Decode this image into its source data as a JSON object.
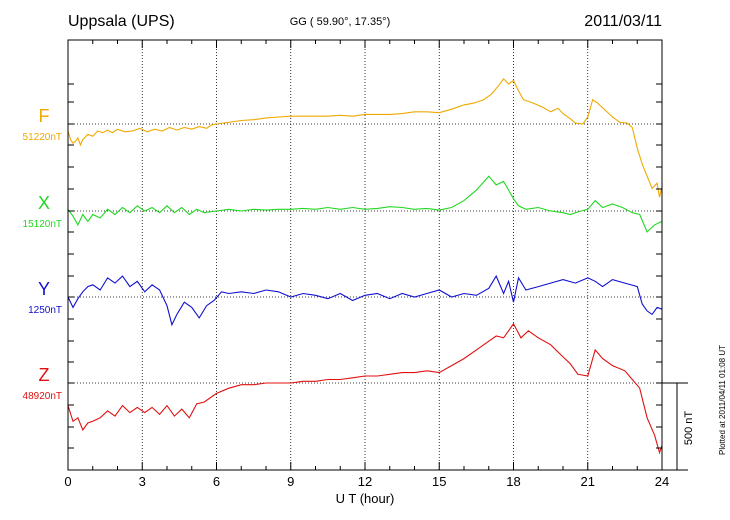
{
  "header": {
    "station": "Uppsala (UPS)",
    "coords": "GG ( 59.90°,  17.35°)",
    "date": "2011/03/11"
  },
  "side_note": "Plotted at 2011/04/11 01:08 UT",
  "scale_bar_label": "500 nT",
  "colors": {
    "F": "#f0a800",
    "X": "#22d822",
    "Y": "#1010d0",
    "Z": "#e01010",
    "axis": "#000000"
  },
  "chart_data": {
    "type": "line",
    "title": "Uppsala (UPS)",
    "xlabel": "U T (hour)",
    "ylabel": "",
    "xlim": [
      0,
      24
    ],
    "xticks": [
      0,
      3,
      6,
      9,
      12,
      15,
      18,
      21,
      24
    ],
    "xtick_labels": [
      "0",
      "3",
      "6",
      "9",
      "12",
      "15",
      "18",
      "21",
      "24"
    ],
    "y_units": "nT",
    "scale_bar_nT": 500,
    "grid": true,
    "series": [
      {
        "name": "F",
        "baseline_label": "51220nT",
        "baseline_nT": 51220,
        "x": [
          0,
          0.1,
          0.2,
          0.3,
          0.4,
          0.5,
          0.6,
          0.8,
          1.0,
          1.2,
          1.4,
          1.6,
          1.8,
          2.0,
          2.3,
          2.6,
          2.9,
          3.2,
          3.5,
          3.8,
          4.1,
          4.4,
          4.7,
          5.0,
          5.3,
          5.6,
          5.8,
          6.0,
          6.5,
          7.0,
          7.5,
          8.0,
          8.5,
          9.0,
          9.5,
          10.0,
          10.5,
          11.0,
          11.5,
          12.0,
          12.5,
          13.0,
          13.5,
          14.0,
          14.5,
          15.0,
          15.5,
          16.0,
          16.4,
          16.8,
          17.1,
          17.4,
          17.6,
          17.8,
          18.0,
          18.2,
          18.4,
          18.8,
          19.2,
          19.5,
          19.8,
          20.0,
          20.3,
          20.5,
          20.8,
          21.0,
          21.2,
          21.4,
          21.7,
          22.0,
          22.3,
          22.6,
          22.8,
          23.0,
          23.2,
          23.4,
          23.6,
          23.8,
          23.9,
          24.0
        ],
        "y": [
          -40,
          -90,
          -110,
          -100,
          -80,
          -120,
          -90,
          -60,
          -70,
          -40,
          -50,
          -35,
          -50,
          -30,
          -45,
          -40,
          -25,
          -45,
          -30,
          -40,
          -20,
          -35,
          -20,
          -30,
          -15,
          -25,
          -5,
          0,
          10,
          20,
          25,
          35,
          40,
          45,
          45,
          45,
          45,
          50,
          45,
          55,
          55,
          55,
          60,
          70,
          70,
          65,
          85,
          110,
          120,
          140,
          170,
          220,
          260,
          230,
          250,
          190,
          140,
          120,
          95,
          70,
          90,
          60,
          30,
          5,
          0,
          40,
          140,
          120,
          80,
          40,
          10,
          5,
          -20,
          -140,
          -230,
          -300,
          -370,
          -340,
          -420,
          -360
        ]
      },
      {
        "name": "X",
        "baseline_label": "15120nT",
        "baseline_nT": 15120,
        "x": [
          0,
          0.2,
          0.4,
          0.6,
          0.8,
          1.0,
          1.3,
          1.6,
          1.9,
          2.2,
          2.5,
          2.8,
          3.1,
          3.4,
          3.7,
          4.0,
          4.3,
          4.6,
          4.9,
          5.2,
          5.5,
          6.0,
          6.5,
          7.0,
          7.5,
          8.0,
          8.5,
          9.0,
          9.5,
          10.0,
          10.5,
          11.0,
          11.5,
          12.0,
          12.5,
          13.0,
          13.5,
          14.0,
          14.5,
          15.0,
          15.5,
          16.0,
          16.5,
          17.0,
          17.3,
          17.6,
          17.8,
          18.0,
          18.2,
          18.5,
          19.0,
          19.5,
          20.0,
          20.3,
          20.6,
          21.0,
          21.3,
          21.6,
          22.0,
          22.4,
          22.8,
          23.1,
          23.4,
          23.7,
          24.0
        ],
        "y": [
          10,
          -30,
          -80,
          -20,
          -60,
          -20,
          -40,
          10,
          -20,
          20,
          -10,
          30,
          0,
          20,
          -10,
          30,
          -10,
          20,
          -20,
          10,
          -10,
          0,
          10,
          0,
          10,
          5,
          10,
          10,
          15,
          10,
          20,
          10,
          20,
          10,
          15,
          25,
          20,
          10,
          15,
          5,
          20,
          60,
          120,
          200,
          150,
          170,
          120,
          70,
          30,
          10,
          20,
          0,
          -10,
          -20,
          -5,
          10,
          60,
          20,
          40,
          20,
          -10,
          -20,
          -120,
          -80,
          -60
        ]
      },
      {
        "name": "Y",
        "baseline_label": "1250nT",
        "baseline_nT": 1250,
        "x": [
          0,
          0.2,
          0.4,
          0.6,
          0.8,
          1.0,
          1.3,
          1.6,
          1.9,
          2.2,
          2.5,
          2.8,
          3.1,
          3.4,
          3.7,
          4.0,
          4.2,
          4.4,
          4.7,
          5.0,
          5.3,
          5.6,
          5.9,
          6.2,
          6.5,
          7.0,
          7.5,
          8.0,
          8.5,
          9.0,
          9.5,
          10.0,
          10.5,
          11.0,
          11.5,
          12.0,
          12.5,
          13.0,
          13.5,
          14.0,
          14.5,
          15.0,
          15.5,
          16.0,
          16.5,
          17.0,
          17.3,
          17.6,
          17.8,
          18.0,
          18.2,
          18.5,
          19.0,
          19.5,
          20.0,
          20.5,
          21.0,
          21.3,
          21.6,
          22.0,
          22.5,
          23.0,
          23.2,
          23.4,
          23.6,
          23.8,
          24.0
        ],
        "y": [
          0,
          -60,
          -10,
          30,
          60,
          70,
          40,
          110,
          80,
          120,
          60,
          90,
          30,
          70,
          40,
          -50,
          -160,
          -100,
          -30,
          -60,
          -120,
          -50,
          -20,
          30,
          20,
          30,
          20,
          40,
          30,
          0,
          20,
          10,
          -10,
          20,
          -20,
          10,
          20,
          -10,
          20,
          0,
          20,
          40,
          0,
          20,
          10,
          50,
          120,
          20,
          90,
          -30,
          110,
          40,
          60,
          80,
          100,
          80,
          110,
          90,
          60,
          100,
          80,
          60,
          -40,
          -80,
          -100,
          -60,
          -70
        ]
      },
      {
        "name": "Z",
        "baseline_label": "48920nT",
        "baseline_nT": 48920,
        "x": [
          0,
          0.2,
          0.4,
          0.6,
          0.8,
          1.0,
          1.3,
          1.6,
          1.9,
          2.2,
          2.5,
          2.8,
          3.1,
          3.4,
          3.7,
          4.0,
          4.3,
          4.6,
          4.9,
          5.2,
          5.5,
          6.0,
          6.5,
          7.0,
          7.5,
          8.0,
          8.5,
          9.0,
          9.5,
          10.0,
          10.5,
          11.0,
          11.5,
          12.0,
          12.5,
          13.0,
          13.5,
          14.0,
          14.5,
          15.0,
          15.5,
          16.0,
          16.5,
          17.0,
          17.3,
          17.6,
          17.8,
          18.0,
          18.3,
          18.6,
          19.0,
          19.5,
          20.0,
          20.3,
          20.6,
          21.0,
          21.3,
          21.6,
          22.0,
          22.5,
          22.8,
          23.1,
          23.4,
          23.7,
          23.9,
          24.0
        ],
        "y": [
          -130,
          -220,
          -200,
          -270,
          -230,
          -220,
          -200,
          -160,
          -190,
          -130,
          -170,
          -140,
          -170,
          -140,
          -180,
          -130,
          -190,
          -150,
          -200,
          -120,
          -110,
          -60,
          -30,
          -10,
          -10,
          0,
          0,
          0,
          10,
          10,
          20,
          20,
          30,
          40,
          40,
          50,
          60,
          60,
          70,
          60,
          100,
          140,
          190,
          240,
          270,
          260,
          300,
          340,
          260,
          300,
          260,
          220,
          150,
          110,
          50,
          40,
          190,
          140,
          100,
          70,
          20,
          -30,
          -200,
          -300,
          -400,
          -360
        ]
      }
    ]
  }
}
